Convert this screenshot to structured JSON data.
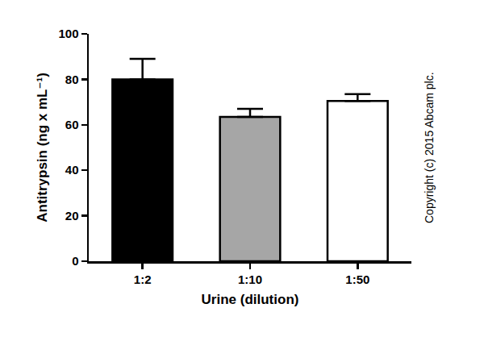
{
  "chart_data": {
    "type": "bar",
    "x_label": "Urine (dilution)",
    "y_label": "Antitrypsin (ng x mL⁻¹)",
    "categories": [
      "1:2",
      "1:10",
      "1:50"
    ],
    "values": [
      80,
      63.5,
      70.5
    ],
    "errors": [
      9,
      3.5,
      3
    ],
    "colors": [
      "#000000",
      "#a6a6a6",
      "#ffffff"
    ],
    "ylim": [
      0,
      100
    ],
    "yticks": [
      0,
      20,
      40,
      60,
      80,
      100
    ],
    "grid": false,
    "annotations": [
      "Copyright (c) 2015 Abcam plc."
    ]
  }
}
